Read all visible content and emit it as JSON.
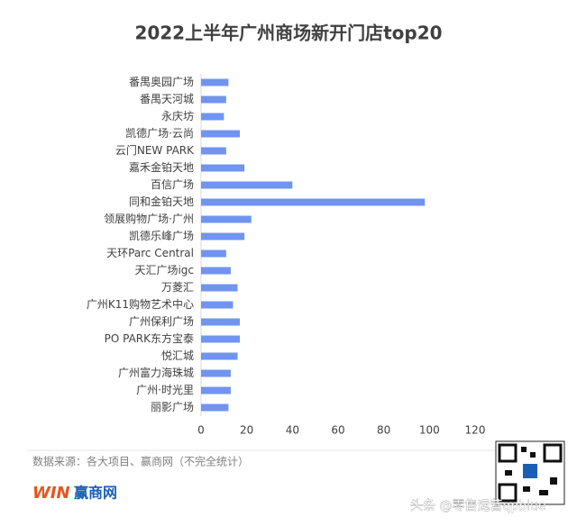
{
  "chart_data": {
    "type": "barh",
    "title": "2022上半年广州商场新开门店top20",
    "categories": [
      "番禺奥园广场",
      "番禺天河城",
      "永庆坊",
      "凯德广场·云尚",
      "云门NEW PARK",
      "嘉禾金铂天地",
      "百信广场",
      "同和金铂天地",
      "领展购物广场·广州",
      "凯德乐峰广场",
      "天环Parc Central",
      "天汇广场igc",
      "万菱汇",
      "广州K11购物艺术中心",
      "广州保利广场",
      "PO PARK东方宝泰",
      "悦汇城",
      "广州富力海珠城",
      "广州·时光里",
      "丽影广场"
    ],
    "values": [
      12,
      11,
      10,
      17,
      11,
      19,
      40,
      98,
      22,
      19,
      11,
      13,
      16,
      14,
      17,
      17,
      16,
      13,
      13,
      12
    ],
    "color": "#7094f0",
    "xlim": [
      0,
      120
    ],
    "xticks": [
      0,
      20,
      40,
      60,
      80,
      100,
      120
    ],
    "grid": false
  },
  "footer": {
    "source": "数据来源：各大项目、赢商网（不完全统计）",
    "logo_mark": "WIN",
    "logo_name": "赢商网",
    "watermark": "头条 @零售运营qpblue"
  }
}
